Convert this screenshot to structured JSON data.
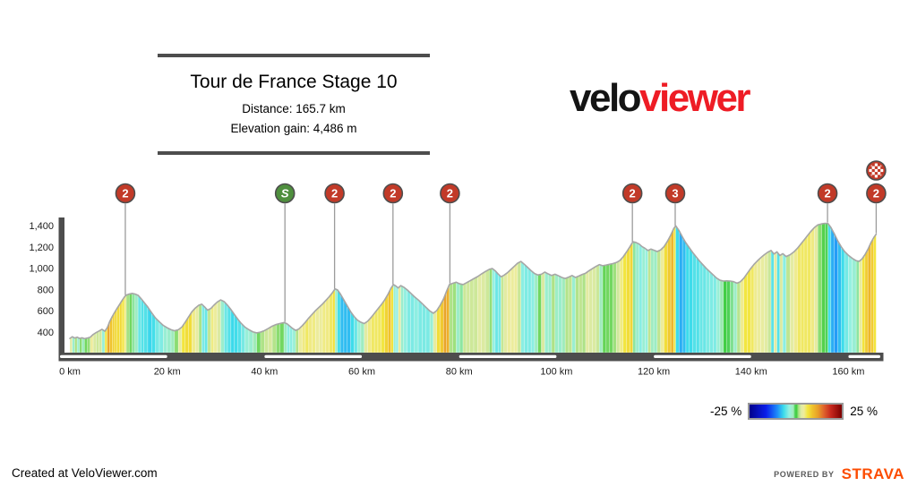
{
  "header": {
    "title": "Tour de France Stage 10",
    "distance_label": "Distance: 165.7 km",
    "elevation_label": "Elevation gain: 4,486 m"
  },
  "logo": {
    "part1": "velo",
    "part2": "viewer",
    "color1": "#141414",
    "color2": "#ee1c25"
  },
  "legend": {
    "min_label": "-25 %",
    "max_label": "25 %"
  },
  "footer": {
    "credit": "Created at VeloViewer.com",
    "powered_by": "POWERED BY",
    "brand": "STRAVA",
    "brand_color": "#fc4c02"
  },
  "chart_data": {
    "type": "area",
    "title": "Tour de France Stage 10",
    "x_unit": "km",
    "y_unit": "m",
    "xlim": [
      0,
      165.7
    ],
    "ylim": [
      400,
      1400
    ],
    "grid": false,
    "y_ticks": [
      {
        "m": 400,
        "label": "400"
      },
      {
        "m": 600,
        "label": "600"
      },
      {
        "m": 800,
        "label": "800"
      },
      {
        "m": 1000,
        "label": "1,000"
      },
      {
        "m": 1200,
        "label": "1,200"
      },
      {
        "m": 1400,
        "label": "1,400"
      }
    ],
    "x_ticks": [
      {
        "km": 0,
        "label": "0 km"
      },
      {
        "km": 20,
        "label": "20 km"
      },
      {
        "km": 40,
        "label": "40 km"
      },
      {
        "km": 60,
        "label": "60 km"
      },
      {
        "km": 80,
        "label": "80 km"
      },
      {
        "km": 100,
        "label": "100 km"
      },
      {
        "km": 120,
        "label": "120 km"
      },
      {
        "km": 140,
        "label": "140 km"
      },
      {
        "km": 160,
        "label": "160 km"
      }
    ],
    "axis_color": "#4d4d4d",
    "outline_color": "#a6a6a6",
    "marker_colors": {
      "climb": "#c23a28",
      "sprint": "#4f8f3e",
      "ring": "#4d4d4d"
    },
    "markers": [
      {
        "km": 11.4,
        "label": "2",
        "kind": "climb"
      },
      {
        "km": 44.2,
        "label": "S",
        "kind": "sprint"
      },
      {
        "km": 54.4,
        "label": "2",
        "kind": "climb"
      },
      {
        "km": 66.4,
        "label": "2",
        "kind": "climb"
      },
      {
        "km": 78.1,
        "label": "2",
        "kind": "climb"
      },
      {
        "km": 115.6,
        "label": "2",
        "kind": "climb"
      },
      {
        "km": 124.4,
        "label": "3",
        "kind": "climb"
      },
      {
        "km": 155.7,
        "label": "2",
        "kind": "climb"
      },
      {
        "km": 165.7,
        "label": "2",
        "kind": "climb",
        "finish": true
      }
    ],
    "colormap_stops": [
      [
        -25,
        [
          0,
          0,
          139
        ]
      ],
      [
        -16,
        [
          10,
          30,
          235
        ]
      ],
      [
        -10,
        [
          30,
          140,
          250
        ]
      ],
      [
        -6.5,
        [
          60,
          220,
          235
        ]
      ],
      [
        -3.5,
        [
          150,
          240,
          225
        ]
      ],
      [
        -1.2,
        [
          160,
          235,
          185
        ]
      ],
      [
        -0.4,
        [
          80,
          210,
          90
        ]
      ],
      [
        0.5,
        [
          62,
          205,
          62
        ]
      ],
      [
        1.5,
        [
          165,
          225,
          130
        ]
      ],
      [
        3,
        [
          225,
          235,
          165
        ]
      ],
      [
        4.5,
        [
          238,
          236,
          155
        ]
      ],
      [
        6.5,
        [
          242,
          230,
          62
        ]
      ],
      [
        9,
        [
          240,
          195,
          45
        ]
      ],
      [
        12,
        [
          232,
          160,
          40
        ]
      ],
      [
        15,
        [
          225,
          105,
          45
        ]
      ],
      [
        19,
        [
          200,
          40,
          30
        ]
      ],
      [
        25,
        [
          123,
          0,
          0
        ]
      ]
    ],
    "profile": [
      [
        0,
        340
      ],
      [
        0.5,
        356
      ],
      [
        1,
        344
      ],
      [
        1.5,
        352
      ],
      [
        2,
        340
      ],
      [
        2.5,
        346
      ],
      [
        3,
        338
      ],
      [
        3.6,
        344
      ],
      [
        4.2,
        352
      ],
      [
        4.8,
        378
      ],
      [
        5.4,
        395
      ],
      [
        6,
        410
      ],
      [
        6.6,
        426
      ],
      [
        7.2,
        408
      ],
      [
        7.7,
        442
      ],
      [
        8.2,
        500
      ],
      [
        8.7,
        545
      ],
      [
        9.2,
        585
      ],
      [
        9.7,
        622
      ],
      [
        10.2,
        658
      ],
      [
        10.7,
        695
      ],
      [
        11.2,
        728
      ],
      [
        11.6,
        748
      ],
      [
        12.2,
        757
      ],
      [
        12.8,
        763
      ],
      [
        13.4,
        757
      ],
      [
        14,
        746
      ],
      [
        14.6,
        716
      ],
      [
        15.2,
        682
      ],
      [
        16,
        636
      ],
      [
        16.8,
        582
      ],
      [
        17.6,
        532
      ],
      [
        18.4,
        496
      ],
      [
        19.2,
        462
      ],
      [
        20,
        440
      ],
      [
        20.8,
        422
      ],
      [
        21.5,
        412
      ],
      [
        22.3,
        422
      ],
      [
        23,
        446
      ],
      [
        23.7,
        492
      ],
      [
        24.4,
        542
      ],
      [
        25.1,
        592
      ],
      [
        25.8,
        626
      ],
      [
        26.5,
        652
      ],
      [
        27.1,
        662
      ],
      [
        27.7,
        636
      ],
      [
        28.3,
        606
      ],
      [
        29,
        622
      ],
      [
        29.6,
        652
      ],
      [
        30.3,
        682
      ],
      [
        31,
        702
      ],
      [
        31.7,
        686
      ],
      [
        32.4,
        652
      ],
      [
        33.1,
        612
      ],
      [
        33.8,
        566
      ],
      [
        34.5,
        522
      ],
      [
        35.2,
        482
      ],
      [
        36,
        446
      ],
      [
        36.8,
        422
      ],
      [
        37.6,
        402
      ],
      [
        38.4,
        392
      ],
      [
        39.2,
        400
      ],
      [
        40,
        414
      ],
      [
        40.8,
        434
      ],
      [
        41.6,
        456
      ],
      [
        42.4,
        471
      ],
      [
        43.2,
        481
      ],
      [
        44,
        489
      ],
      [
        44.6,
        479
      ],
      [
        45.2,
        456
      ],
      [
        45.8,
        433
      ],
      [
        46.4,
        416
      ],
      [
        47,
        427
      ],
      [
        47.7,
        457
      ],
      [
        48.4,
        492
      ],
      [
        49.1,
        532
      ],
      [
        49.8,
        567
      ],
      [
        50.5,
        602
      ],
      [
        51.2,
        632
      ],
      [
        51.9,
        662
      ],
      [
        52.6,
        697
      ],
      [
        53.3,
        732
      ],
      [
        54,
        772
      ],
      [
        54.5,
        806
      ],
      [
        55,
        796
      ],
      [
        55.6,
        757
      ],
      [
        56.3,
        702
      ],
      [
        57,
        647
      ],
      [
        57.7,
        592
      ],
      [
        58.4,
        547
      ],
      [
        59.1,
        512
      ],
      [
        59.8,
        492
      ],
      [
        60.5,
        480
      ],
      [
        61.2,
        502
      ],
      [
        61.9,
        537
      ],
      [
        62.6,
        577
      ],
      [
        63.3,
        617
      ],
      [
        64,
        657
      ],
      [
        64.7,
        702
      ],
      [
        65.4,
        757
      ],
      [
        66,
        812
      ],
      [
        66.5,
        846
      ],
      [
        67,
        832
      ],
      [
        67.5,
        814
      ],
      [
        68,
        836
      ],
      [
        68.6,
        822
      ],
      [
        69.3,
        797
      ],
      [
        70,
        767
      ],
      [
        70.8,
        732
      ],
      [
        71.6,
        702
      ],
      [
        72.4,
        667
      ],
      [
        73.2,
        632
      ],
      [
        74,
        597
      ],
      [
        74.7,
        577
      ],
      [
        75.4,
        602
      ],
      [
        76.1,
        652
      ],
      [
        76.8,
        712
      ],
      [
        77.4,
        782
      ],
      [
        78,
        846
      ],
      [
        78.7,
        858
      ],
      [
        79.4,
        868
      ],
      [
        80.1,
        853
      ],
      [
        80.8,
        846
      ],
      [
        81.5,
        863
      ],
      [
        82.2,
        881
      ],
      [
        83,
        901
      ],
      [
        83.8,
        921
      ],
      [
        84.6,
        946
      ],
      [
        85.4,
        969
      ],
      [
        86.2,
        989
      ],
      [
        86.8,
        997
      ],
      [
        87.4,
        976
      ],
      [
        88,
        946
      ],
      [
        88.6,
        919
      ],
      [
        89.2,
        933
      ],
      [
        89.9,
        956
      ],
      [
        90.6,
        986
      ],
      [
        91.3,
        1016
      ],
      [
        92,
        1046
      ],
      [
        92.7,
        1063
      ],
      [
        93.4,
        1036
      ],
      [
        94.1,
        1006
      ],
      [
        94.8,
        976
      ],
      [
        95.5,
        949
      ],
      [
        96.2,
        936
      ],
      [
        96.9,
        943
      ],
      [
        97.6,
        963
      ],
      [
        98.3,
        946
      ],
      [
        99,
        931
      ],
      [
        99.7,
        943
      ],
      [
        100.4,
        929
      ],
      [
        101.1,
        913
      ],
      [
        101.8,
        903
      ],
      [
        102.5,
        916
      ],
      [
        103.2,
        931
      ],
      [
        103.9,
        913
      ],
      [
        104.6,
        926
      ],
      [
        105.3,
        941
      ],
      [
        106,
        953
      ],
      [
        106.7,
        976
      ],
      [
        107.4,
        996
      ],
      [
        108.1,
        1016
      ],
      [
        108.8,
        1033
      ],
      [
        109.5,
        1023
      ],
      [
        110.2,
        1029
      ],
      [
        110.9,
        1036
      ],
      [
        111.6,
        1043
      ],
      [
        112.3,
        1053
      ],
      [
        113,
        1071
      ],
      [
        113.7,
        1106
      ],
      [
        114.4,
        1152
      ],
      [
        115.1,
        1202
      ],
      [
        115.7,
        1248
      ],
      [
        116.3,
        1242
      ],
      [
        117,
        1226
      ],
      [
        117.6,
        1202
      ],
      [
        118.2,
        1186
      ],
      [
        118.8,
        1166
      ],
      [
        119.4,
        1179
      ],
      [
        120,
        1169
      ],
      [
        120.7,
        1156
      ],
      [
        121.4,
        1171
      ],
      [
        122.1,
        1202
      ],
      [
        122.8,
        1252
      ],
      [
        123.5,
        1312
      ],
      [
        124.1,
        1372
      ],
      [
        124.5,
        1398
      ],
      [
        125.2,
        1352
      ],
      [
        125.9,
        1292
      ],
      [
        126.6,
        1237
      ],
      [
        127.3,
        1192
      ],
      [
        128,
        1147
      ],
      [
        128.7,
        1107
      ],
      [
        129.4,
        1067
      ],
      [
        130.1,
        1032
      ],
      [
        130.8,
        997
      ],
      [
        131.5,
        967
      ],
      [
        132.2,
        937
      ],
      [
        132.9,
        907
      ],
      [
        133.6,
        887
      ],
      [
        134.3,
        879
      ],
      [
        135,
        881
      ],
      [
        135.7,
        879
      ],
      [
        136.4,
        873
      ],
      [
        137.1,
        859
      ],
      [
        137.8,
        873
      ],
      [
        138.5,
        906
      ],
      [
        139.2,
        951
      ],
      [
        139.9,
        996
      ],
      [
        140.6,
        1036
      ],
      [
        141.3,
        1069
      ],
      [
        142,
        1099
      ],
      [
        142.7,
        1126
      ],
      [
        143.4,
        1149
      ],
      [
        144.1,
        1166
      ],
      [
        144.7,
        1133
      ],
      [
        145.3,
        1153
      ],
      [
        145.9,
        1119
      ],
      [
        146.5,
        1136
      ],
      [
        147.2,
        1109
      ],
      [
        148,
        1126
      ],
      [
        148.8,
        1153
      ],
      [
        149.5,
        1186
      ],
      [
        150.2,
        1226
      ],
      [
        150.9,
        1266
      ],
      [
        151.6,
        1306
      ],
      [
        152.3,
        1346
      ],
      [
        153,
        1381
      ],
      [
        153.7,
        1406
      ],
      [
        154.5,
        1416
      ],
      [
        155.2,
        1421
      ],
      [
        155.8,
        1419
      ],
      [
        156.4,
        1382
      ],
      [
        157.1,
        1322
      ],
      [
        157.8,
        1257
      ],
      [
        158.5,
        1202
      ],
      [
        159.2,
        1157
      ],
      [
        160,
        1120
      ],
      [
        160.8,
        1092
      ],
      [
        161.6,
        1070
      ],
      [
        162.2,
        1064
      ],
      [
        162.8,
        1087
      ],
      [
        163.4,
        1127
      ],
      [
        164,
        1177
      ],
      [
        164.6,
        1237
      ],
      [
        165.2,
        1287
      ],
      [
        165.7,
        1320
      ]
    ]
  }
}
